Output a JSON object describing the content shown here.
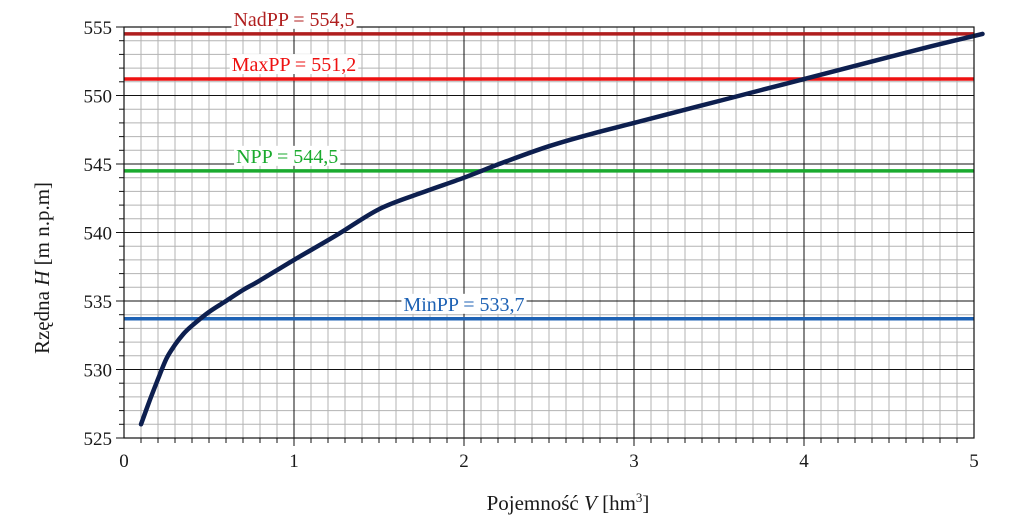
{
  "chart_data": {
    "type": "line",
    "xlabel_parts": [
      "Pojemność ",
      "V",
      " [hm",
      "3",
      "]"
    ],
    "ylabel_parts": [
      "Rzędna ",
      "H",
      " [m n.p.m]"
    ],
    "xlim": [
      0,
      5
    ],
    "ylim": [
      525,
      555
    ],
    "x_ticks": [
      0,
      1,
      2,
      3,
      4,
      5
    ],
    "y_ticks": [
      525,
      530,
      535,
      540,
      545,
      550,
      555
    ],
    "x_tick_labels": [
      "0",
      "1",
      "2",
      "3",
      "4",
      "5"
    ],
    "y_tick_labels": [
      "525",
      "530",
      "535",
      "540",
      "545",
      "550",
      "555"
    ],
    "grid": true,
    "minor_grid": true,
    "series": [
      {
        "color": "#0d1f4f",
        "x": [
          0.1,
          0.15,
          0.2,
          0.25,
          0.3,
          0.35,
          0.4,
          0.5,
          0.6,
          0.7,
          0.8,
          1.0,
          1.25,
          1.5,
          1.75,
          2.0,
          2.25,
          2.5,
          2.75,
          3.0,
          3.25,
          3.5,
          3.75,
          4.0,
          4.25,
          4.5,
          4.75,
          5.05
        ],
        "y": [
          526.0,
          527.7,
          529.3,
          530.8,
          531.8,
          532.6,
          533.2,
          534.2,
          535.0,
          535.8,
          536.5,
          538.0,
          539.8,
          541.7,
          542.9,
          544.0,
          545.2,
          546.3,
          547.2,
          548.0,
          548.8,
          549.6,
          550.4,
          551.2,
          552.0,
          552.8,
          553.6,
          554.5
        ]
      }
    ],
    "reference_lines": [
      {
        "label": "NadPP = 554,5",
        "value": 554.5,
        "color": "#b01e1e",
        "label_x": 1.0
      },
      {
        "label": "MaxPP = 551,2",
        "value": 551.2,
        "color": "#ee1111",
        "label_x": 1.0
      },
      {
        "label": "NPP = 544,5",
        "value": 544.5,
        "color": "#1aaa2e",
        "label_x": 0.96
      },
      {
        "label": "MinPP = 533,7",
        "value": 533.7,
        "color": "#1e62b4",
        "label_x": 2.0
      }
    ]
  }
}
